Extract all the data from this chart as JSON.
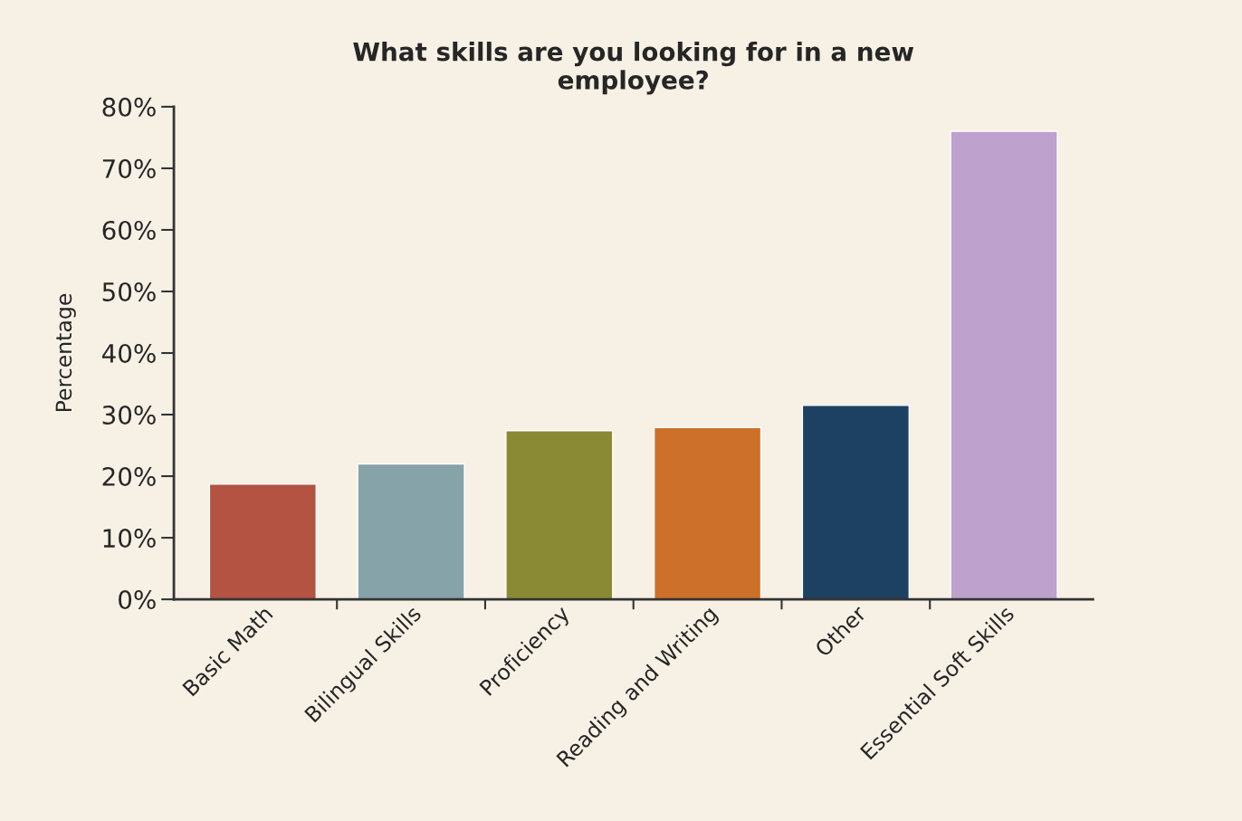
{
  "chart_data": {
    "type": "bar",
    "title": "What skills are you looking for in a new\nemployee?",
    "ylabel": "Percentage",
    "categories": [
      "Basic Math",
      "Bilingual Skills",
      "Proficiency",
      "Reading and Writing",
      "Other",
      "Essential Soft Skills"
    ],
    "values": [
      18.7,
      22.0,
      27.4,
      27.9,
      31.5,
      76.0
    ],
    "colors": [
      "#b55342",
      "#87a3aa",
      "#8a8a35",
      "#cd712a",
      "#1c4162",
      "#bea2cd"
    ],
    "ylim": [
      0,
      80
    ],
    "yticks": [
      {
        "value": 0,
        "label": "0%"
      },
      {
        "value": 10,
        "label": "10%"
      },
      {
        "value": 20,
        "label": "20%"
      },
      {
        "value": 30,
        "label": "30%"
      },
      {
        "value": 40,
        "label": "40%"
      },
      {
        "value": 50,
        "label": "50%"
      },
      {
        "value": 60,
        "label": "60%"
      },
      {
        "value": 70,
        "label": "70%"
      },
      {
        "value": 80,
        "label": "80%"
      }
    ],
    "grid": false,
    "legend": false
  }
}
